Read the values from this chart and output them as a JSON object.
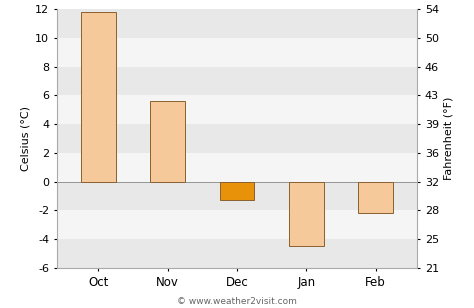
{
  "categories": [
    "Oct",
    "Nov",
    "Dec",
    "Jan",
    "Feb"
  ],
  "values": [
    11.8,
    5.6,
    -1.3,
    -4.5,
    -2.2
  ],
  "bar_colors": [
    "#f5c99a",
    "#f5c99a",
    "#e8920a",
    "#f5c99a",
    "#f5c99a"
  ],
  "bar_edge_colors": [
    "#8a6030",
    "#8a6030",
    "#8a6030",
    "#8a6030",
    "#8a6030"
  ],
  "ylim_celsius": [
    -6,
    12
  ],
  "yticks_celsius": [
    -6,
    -4,
    -2,
    0,
    2,
    4,
    6,
    8,
    10,
    12
  ],
  "yticks_fahrenheit": [
    21,
    25,
    28,
    32,
    36,
    39,
    43,
    46,
    50,
    54
  ],
  "ylabel_left": "Celsius (°C)",
  "ylabel_right": "Fahrenheit (°F)",
  "figure_bg": "#ffffff",
  "stripe_light": "#f5f5f5",
  "stripe_dark": "#e8e8e8",
  "copyright_text": "© www.weather2visit.com",
  "bar_width": 0.5
}
